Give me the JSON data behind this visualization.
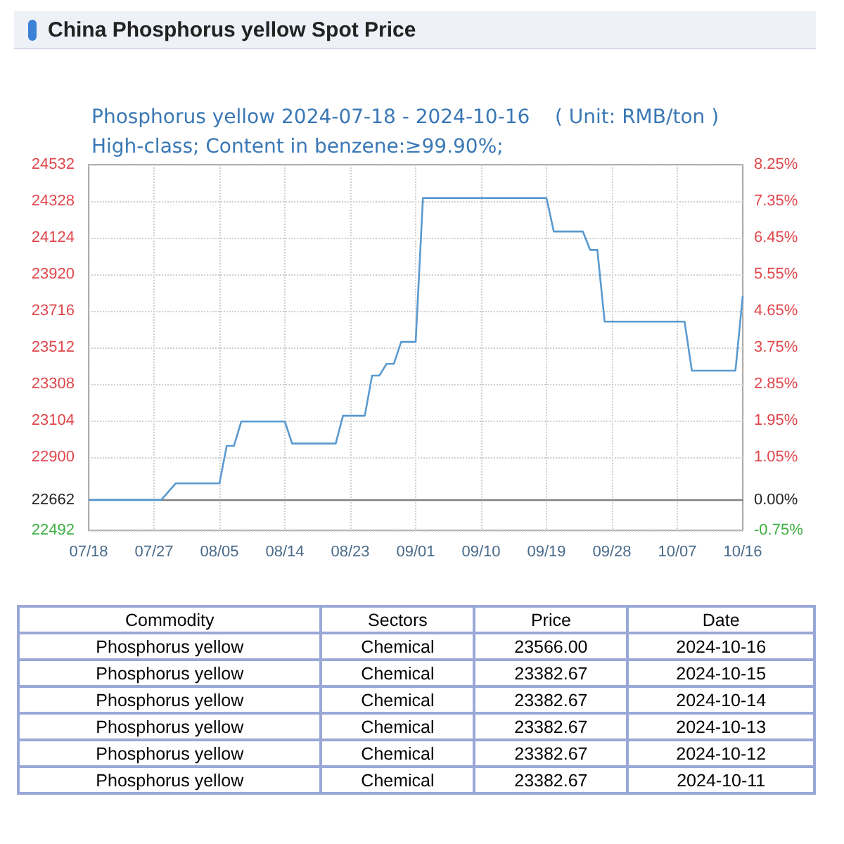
{
  "chart_data": [
    {
      "type": "line",
      "title": "China Phosphorus yellow Spot Price",
      "subtitle": "Phosphorus yellow 2024-07-18 - 2024-10-16    ( Unit: RMB/ton )\nHigh-class; Content in benzene:≥99.90%;",
      "x": [
        "2024-07-18",
        "2024-07-28",
        "2024-07-30",
        "2024-08-05",
        "2024-08-06",
        "2024-08-07",
        "2024-08-08",
        "2024-08-14",
        "2024-08-15",
        "2024-08-21",
        "2024-08-22",
        "2024-08-25",
        "2024-08-26",
        "2024-08-27",
        "2024-08-28",
        "2024-08-29",
        "2024-08-30",
        "2024-09-01",
        "2024-09-02",
        "2024-09-19",
        "2024-09-20",
        "2024-09-24",
        "2024-09-25",
        "2024-09-26",
        "2024-09-27",
        "2024-10-08",
        "2024-10-09",
        "2024-10-15",
        "2024-10-16"
      ],
      "series": [
        {
          "color": "#5a9ad0",
          "values": [
            22662,
            22662,
            22754,
            22754,
            22963,
            22963,
            23099,
            23099,
            22976,
            22976,
            23131,
            23131,
            23355,
            23355,
            23421,
            23421,
            23543,
            23543,
            24345,
            24345,
            24159,
            24159,
            24056,
            24056,
            23656,
            23656,
            23382.67,
            23382.67,
            23800
          ]
        }
      ],
      "xlim": [
        "2024-07-18",
        "2024-10-16"
      ],
      "xticks": [
        {
          "value": "2024-07-18",
          "label": "07/18"
        },
        {
          "value": "2024-07-27",
          "label": "07/27"
        },
        {
          "value": "2024-08-05",
          "label": "08/05"
        },
        {
          "value": "2024-08-14",
          "label": "08/14"
        },
        {
          "value": "2024-08-23",
          "label": "08/23"
        },
        {
          "value": "2024-09-01",
          "label": "09/01"
        },
        {
          "value": "2024-09-10",
          "label": "09/10"
        },
        {
          "value": "2024-09-19",
          "label": "09/19"
        },
        {
          "value": "2024-09-28",
          "label": "09/28"
        },
        {
          "value": "2024-10-07",
          "label": "10/07"
        },
        {
          "value": "2024-10-16",
          "label": "10/16"
        }
      ],
      "ylim": [
        22492,
        24532
      ],
      "yticks": [
        22492,
        22662,
        22900,
        23104,
        23308,
        23512,
        23716,
        23920,
        24124,
        24328,
        24532
      ],
      "y2lim": [
        -0.75,
        8.25
      ],
      "y2ticks": [
        {
          "value": -0.75,
          "label": "-0.75%"
        },
        {
          "value": 0,
          "label": "0.00%"
        },
        {
          "value": 1.05,
          "label": "1.05%"
        },
        {
          "value": 1.95,
          "label": "1.95%"
        },
        {
          "value": 2.85,
          "label": "2.85%"
        },
        {
          "value": 3.75,
          "label": "3.75%"
        },
        {
          "value": 4.65,
          "label": "4.65%"
        },
        {
          "value": 5.55,
          "label": "5.55%"
        },
        {
          "value": 6.45,
          "label": "6.45%"
        },
        {
          "value": 7.35,
          "label": "7.35%"
        },
        {
          "value": 8.25,
          "label": "8.25%"
        }
      ],
      "ref_lines": [
        {
          "axis": "y",
          "value": 22662,
          "color": "#808080"
        }
      ],
      "grid": true,
      "marker": "none",
      "line_style": "solid"
    },
    {
      "type": "other",
      "annotations": [
        "Commodity",
        "Sectors",
        "Price",
        "Date",
        "Phosphorus yellow",
        "Chemical",
        "23566.00",
        "2024-10-16",
        "Phosphorus yellow",
        "Chemical",
        "23382.67",
        "2024-10-15",
        "Phosphorus yellow",
        "Chemical",
        "23382.67",
        "2024-10-14",
        "Phosphorus yellow",
        "Chemical",
        "23382.67",
        "2024-10-13",
        "Phosphorus yellow",
        "Chemical",
        "23382.67",
        "2024-10-12",
        "Phosphorus yellow",
        "Chemical",
        "23382.67",
        "2024-10-11"
      ]
    }
  ]
}
